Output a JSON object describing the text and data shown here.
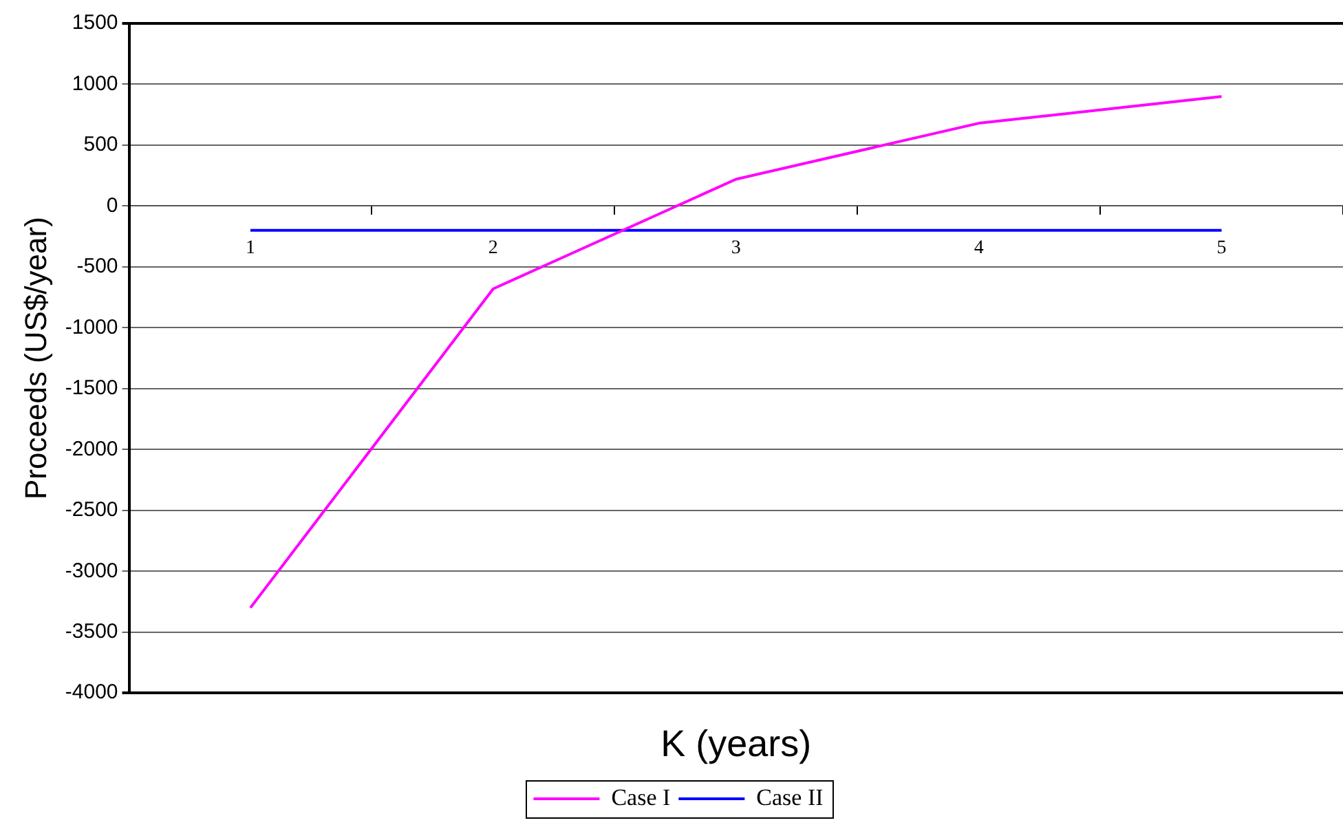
{
  "chart_data": {
    "type": "line",
    "xlabel": "K (years)",
    "ylabel": "Proceeds (US$/year)",
    "categories": [
      "1",
      "2",
      "3",
      "4",
      "5"
    ],
    "series": [
      {
        "name": "Case I",
        "color": "#ff00ff",
        "values": [
          -3300,
          -680,
          220,
          680,
          900
        ]
      },
      {
        "name": "Case II",
        "color": "#0000ff",
        "values": [
          -200,
          -200,
          -200,
          -200,
          -200
        ]
      }
    ],
    "ylim": [
      -4000,
      1500
    ],
    "yticks": [
      -4000,
      -3500,
      -3000,
      -2500,
      -2000,
      -1500,
      -1000,
      -500,
      0,
      500,
      1000,
      1500
    ],
    "grid": "y",
    "legend": "bottom",
    "marker": "none",
    "line_style": "solid"
  }
}
